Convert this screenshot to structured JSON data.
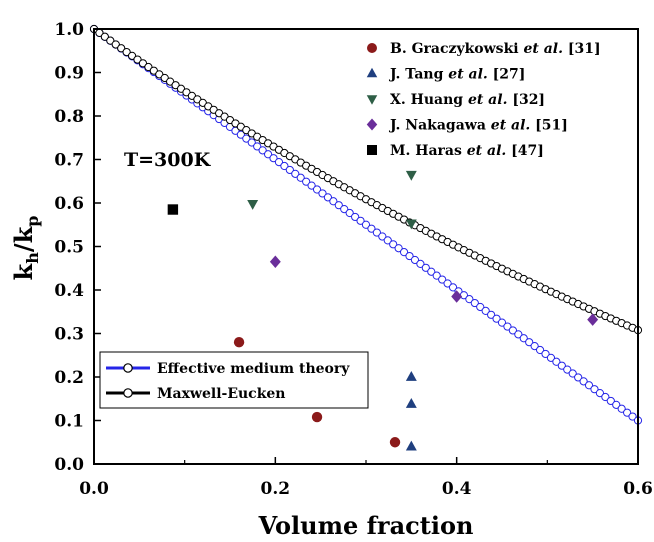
{
  "chart_data": {
    "type": "scatter",
    "xlabel": "Volume fraction",
    "ylabel": {
      "base": "k",
      "sub1": "h",
      "sep": "/k",
      "sub2": "p"
    },
    "xlim": [
      0,
      0.6
    ],
    "ylim": [
      0,
      1.0
    ],
    "x_ticks": [
      "0.0",
      "0.2",
      "0.4",
      "0.6"
    ],
    "y_ticks": [
      "0.0",
      "0.1",
      "0.2",
      "0.3",
      "0.4",
      "0.5",
      "0.6",
      "0.7",
      "0.8",
      "0.9",
      "1.0"
    ],
    "grid": false,
    "annotation": "T=300K",
    "series": [
      {
        "name": {
          "author": "B. Graczykowski ",
          "etal": "et al.",
          "ref": " [31]"
        },
        "marker": "circle",
        "color": "#8B1A1A",
        "points": [
          [
            0.16,
            0.28
          ],
          [
            0.246,
            0.108
          ],
          [
            0.332,
            0.05
          ]
        ]
      },
      {
        "name": {
          "author": "J. Tang ",
          "etal": "et al.",
          "ref": " [27]"
        },
        "marker": "triangle-up",
        "color": "#1F3F7F",
        "points": [
          [
            0.35,
            0.2
          ],
          [
            0.35,
            0.138
          ],
          [
            0.35,
            0.04
          ]
        ]
      },
      {
        "name": {
          "author": "X. Huang ",
          "etal": "et al.",
          "ref": " [32]"
        },
        "marker": "triangle-down",
        "color": "#2E5E46",
        "points": [
          [
            0.175,
            0.598
          ],
          [
            0.35,
            0.665
          ],
          [
            0.35,
            0.553
          ]
        ]
      },
      {
        "name": {
          "author": "J. Nakagawa ",
          "etal": "et al.",
          "ref": " [51]"
        },
        "marker": "diamond",
        "color": "#6A2E9A",
        "points": [
          [
            0.2,
            0.465
          ],
          [
            0.4,
            0.385
          ],
          [
            0.55,
            0.332
          ]
        ]
      },
      {
        "name": {
          "author": "M. Haras ",
          "etal": "et al.",
          "ref": " [47]"
        },
        "marker": "square",
        "color": "#000000",
        "points": [
          [
            0.087,
            0.585
          ]
        ]
      }
    ],
    "lines": [
      {
        "name": "Effective medium theory",
        "color": "#2525E8",
        "marker": "open-circle",
        "formula": "1 - 1.5x"
      },
      {
        "name": "Maxwell-Eucken",
        "color": "#000000",
        "marker": "open-circle",
        "formula": "2(1-x)/(2+x)"
      }
    ],
    "legend_placement": "top-right (points), bottom-left (lines)"
  }
}
